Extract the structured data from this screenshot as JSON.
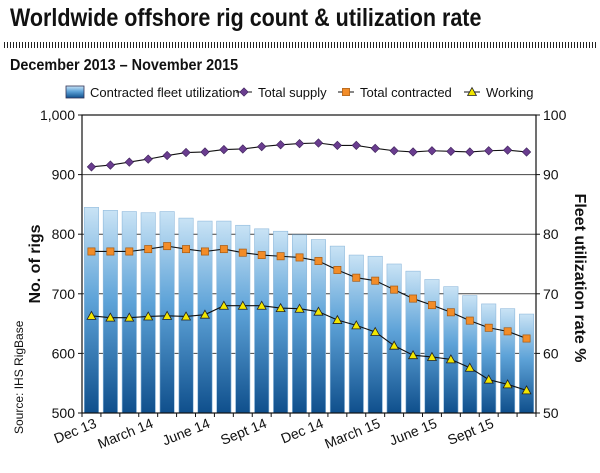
{
  "chart_data": {
    "type": "bar",
    "title": "Worldwide offshore rig count & utilization rate",
    "subtitle": "December 2013 – November 2015",
    "ylabel": "No. of rigs",
    "y2label": "Fleet utilization rate %",
    "source": "Source: IHS RigBase",
    "ylim": [
      500,
      1000
    ],
    "y2lim": [
      50,
      100
    ],
    "yticks": [
      "500",
      "600",
      "700",
      "800",
      "900",
      "1,000"
    ],
    "y2ticks": [
      "50",
      "60",
      "70",
      "80",
      "90",
      "100"
    ],
    "xtick_labels": [
      {
        "index": 0,
        "label": "Dec 13"
      },
      {
        "index": 3,
        "label": "March 14"
      },
      {
        "index": 6,
        "label": "June 14"
      },
      {
        "index": 9,
        "label": "Sept 14"
      },
      {
        "index": 12,
        "label": "Dec 14"
      },
      {
        "index": 15,
        "label": "March 15"
      },
      {
        "index": 18,
        "label": "June 15"
      },
      {
        "index": 21,
        "label": "Sept 15"
      }
    ],
    "grid": true,
    "legend_position": "top",
    "categories": [
      "Dec 13",
      "Jan 14",
      "Feb 14",
      "March 14",
      "Apr 14",
      "May 14",
      "June 14",
      "Jul 14",
      "Aug 14",
      "Sept 14",
      "Oct 14",
      "Nov 14",
      "Dec 14",
      "Jan 15",
      "Feb 15",
      "March 15",
      "Apr 15",
      "May 15",
      "June 15",
      "Jul 15",
      "Aug 15",
      "Sept 15",
      "Oct 15",
      "Nov 15"
    ],
    "series": [
      {
        "name": "Contracted fleet utilization",
        "kind": "bar",
        "axis": "right",
        "color": "#5b9fd4",
        "values": [
          84.5,
          84.0,
          83.8,
          83.6,
          83.8,
          82.7,
          82.2,
          82.2,
          81.5,
          80.9,
          80.5,
          79.9,
          79.1,
          78.0,
          76.5,
          76.3,
          75.0,
          73.8,
          72.4,
          71.2,
          69.7,
          68.3,
          67.5,
          66.6
        ]
      },
      {
        "name": "Total supply",
        "kind": "line",
        "axis": "left",
        "marker": "diamond",
        "color": "#6a3d8f",
        "values": [
          913,
          916,
          921,
          926,
          932,
          937,
          938,
          942,
          943,
          947,
          950,
          952,
          953,
          949,
          949,
          944,
          940,
          938,
          940,
          939,
          938,
          940,
          941,
          938
        ]
      },
      {
        "name": "Total contracted",
        "kind": "line",
        "axis": "left",
        "marker": "square",
        "color": "#f28c28",
        "values": [
          771,
          771,
          771,
          775,
          780,
          775,
          771,
          775,
          769,
          765,
          763,
          761,
          755,
          740,
          727,
          722,
          707,
          692,
          681,
          669,
          655,
          643,
          637,
          625
        ]
      },
      {
        "name": "Working",
        "kind": "line",
        "axis": "left",
        "marker": "triangle",
        "color": "#f2e600",
        "values": [
          663,
          660,
          660,
          662,
          663,
          662,
          665,
          680,
          680,
          680,
          676,
          675,
          670,
          656,
          647,
          636,
          613,
          597,
          594,
          590,
          576,
          556,
          548,
          538
        ]
      }
    ]
  }
}
